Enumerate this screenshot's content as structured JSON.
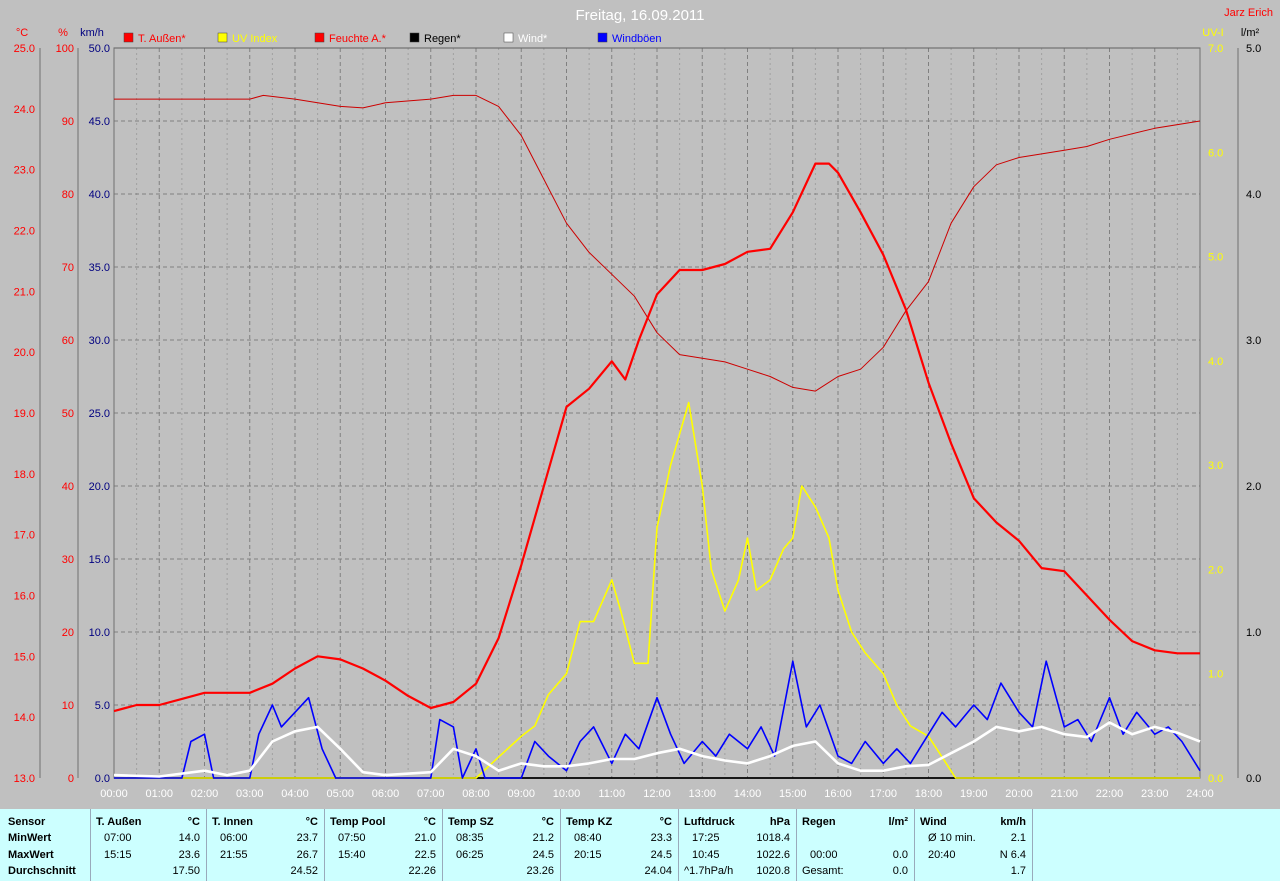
{
  "header": {
    "title": "Freitag, 16.09.2011",
    "author": "Jarz Erich"
  },
  "colors": {
    "temp": "#ff0000",
    "uv": "#ffff00",
    "humidity": "#cc0000",
    "rain": "#000000",
    "wind": "#ffffff",
    "gust": "#0000ff",
    "grid": "#808080",
    "plot_bg": "#c0c0c0",
    "stats_bg": "#ccffff"
  },
  "legend": [
    {
      "label": "T. Außen*",
      "color": "#ff0000"
    },
    {
      "label": "UV Index",
      "color": "#ffff00"
    },
    {
      "label": "Feuchte A.*",
      "color": "#ff0000"
    },
    {
      "label": "Regen*",
      "color": "#000000"
    },
    {
      "label": "Wind*",
      "color": "#ffffff"
    },
    {
      "label": "Windböen",
      "color": "#0000ff"
    }
  ],
  "chart_data": {
    "type": "line",
    "title": "Freitag, 16.09.2011",
    "x_ticks": [
      "00:00",
      "01:00",
      "02:00",
      "03:00",
      "04:00",
      "05:00",
      "06:00",
      "07:00",
      "08:00",
      "09:00",
      "10:00",
      "11:00",
      "12:00",
      "13:00",
      "14:00",
      "15:00",
      "16:00",
      "17:00",
      "18:00",
      "19:00",
      "20:00",
      "21:00",
      "22:00",
      "23:00",
      "24:00"
    ],
    "grid": true,
    "legend_position": "top",
    "axes": {
      "temp": {
        "unit": "°C",
        "range": [
          13.0,
          25.0
        ],
        "ticks": [
          "13.0",
          "14.0",
          "15.0",
          "16.0",
          "17.0",
          "18.0",
          "19.0",
          "20.0",
          "21.0",
          "22.0",
          "23.0",
          "24.0",
          "25.0"
        ]
      },
      "humidity": {
        "unit": "%",
        "range": [
          0,
          100
        ],
        "ticks": [
          "0",
          "10",
          "20",
          "30",
          "40",
          "50",
          "60",
          "70",
          "80",
          "90",
          "100"
        ]
      },
      "wind": {
        "unit": "km/h",
        "range": [
          0,
          50
        ],
        "ticks": [
          "0.0",
          "5.0",
          "10.0",
          "15.0",
          "20.0",
          "25.0",
          "30.0",
          "35.0",
          "40.0",
          "45.0",
          "50.0"
        ]
      },
      "uv": {
        "unit": "UV-I",
        "range": [
          0,
          7
        ],
        "ticks": [
          "0.0",
          "1.0",
          "2.0",
          "3.0",
          "4.0",
          "5.0",
          "6.0",
          "7.0"
        ]
      },
      "rain": {
        "unit": "l/m²",
        "range": [
          0,
          5
        ],
        "ticks": [
          "0.0",
          "1.0",
          "2.0",
          "3.0",
          "4.0",
          "5.0"
        ]
      }
    },
    "series": [
      {
        "name": "T. Außen*",
        "axis": "temp",
        "width": 2.2,
        "color": "#ff0000",
        "points": [
          [
            0,
            14.1
          ],
          [
            0.5,
            14.2
          ],
          [
            1,
            14.2
          ],
          [
            1.5,
            14.3
          ],
          [
            2,
            14.4
          ],
          [
            2.5,
            14.4
          ],
          [
            3,
            14.4
          ],
          [
            3.5,
            14.55
          ],
          [
            4,
            14.8
          ],
          [
            4.5,
            15.0
          ],
          [
            5,
            14.95
          ],
          [
            5.5,
            14.8
          ],
          [
            6,
            14.6
          ],
          [
            6.5,
            14.35
          ],
          [
            7,
            14.15
          ],
          [
            7.5,
            14.25
          ],
          [
            8,
            14.55
          ],
          [
            8.5,
            15.3
          ],
          [
            9,
            16.5
          ],
          [
            9.5,
            17.8
          ],
          [
            10,
            19.1
          ],
          [
            10.5,
            19.4
          ],
          [
            11,
            19.85
          ],
          [
            11.3,
            19.55
          ],
          [
            11.6,
            20.2
          ],
          [
            12,
            20.95
          ],
          [
            12.5,
            21.35
          ],
          [
            13,
            21.35
          ],
          [
            13.5,
            21.45
          ],
          [
            14,
            21.65
          ],
          [
            14.5,
            21.7
          ],
          [
            15,
            22.3
          ],
          [
            15.5,
            23.1
          ],
          [
            15.8,
            23.1
          ],
          [
            16,
            22.95
          ],
          [
            16.5,
            22.3
          ],
          [
            17,
            21.6
          ],
          [
            17.5,
            20.7
          ],
          [
            18,
            19.5
          ],
          [
            18.5,
            18.5
          ],
          [
            19,
            17.6
          ],
          [
            19.5,
            17.2
          ],
          [
            20,
            16.9
          ],
          [
            20.5,
            16.45
          ],
          [
            21,
            16.4
          ],
          [
            21.5,
            16.0
          ],
          [
            22,
            15.6
          ],
          [
            22.5,
            15.25
          ],
          [
            23,
            15.1
          ],
          [
            23.5,
            15.05
          ],
          [
            24,
            15.05
          ]
        ]
      },
      {
        "name": "Feuchte A.*",
        "axis": "humidity",
        "width": 1,
        "color": "#cc0000",
        "points": [
          [
            0,
            93
          ],
          [
            1,
            93
          ],
          [
            2,
            93
          ],
          [
            3,
            93
          ],
          [
            3.3,
            93.5
          ],
          [
            4,
            93
          ],
          [
            4.5,
            92.5
          ],
          [
            5,
            92
          ],
          [
            5.5,
            91.8
          ],
          [
            6,
            92.5
          ],
          [
            7,
            93
          ],
          [
            7.5,
            93.5
          ],
          [
            8,
            93.5
          ],
          [
            8.5,
            92
          ],
          [
            9,
            88
          ],
          [
            9.5,
            82
          ],
          [
            10,
            76
          ],
          [
            10.5,
            72
          ],
          [
            11,
            69
          ],
          [
            11.5,
            66
          ],
          [
            12,
            61
          ],
          [
            12.5,
            58
          ],
          [
            13,
            57.5
          ],
          [
            13.5,
            57
          ],
          [
            14,
            56
          ],
          [
            14.5,
            55
          ],
          [
            15,
            53.5
          ],
          [
            15.5,
            53
          ],
          [
            16,
            55
          ],
          [
            16.5,
            56
          ],
          [
            17,
            59
          ],
          [
            17.5,
            64
          ],
          [
            18,
            68
          ],
          [
            18.5,
            76
          ],
          [
            19,
            81
          ],
          [
            19.5,
            84
          ],
          [
            20,
            85
          ],
          [
            21,
            86
          ],
          [
            21.5,
            86.5
          ],
          [
            22,
            87.5
          ],
          [
            23,
            89
          ],
          [
            24,
            90
          ]
        ]
      },
      {
        "name": "UV Index",
        "axis": "uv",
        "width": 1.6,
        "color": "#ffff00",
        "points": [
          [
            0,
            0
          ],
          [
            8,
            0
          ],
          [
            8.5,
            0.2
          ],
          [
            9,
            0.4
          ],
          [
            9.3,
            0.5
          ],
          [
            9.6,
            0.8
          ],
          [
            10,
            1.0
          ],
          [
            10.3,
            1.5
          ],
          [
            10.6,
            1.5
          ],
          [
            11,
            1.9
          ],
          [
            11.2,
            1.6
          ],
          [
            11.5,
            1.1
          ],
          [
            11.8,
            1.1
          ],
          [
            12,
            2.4
          ],
          [
            12.3,
            3.0
          ],
          [
            12.7,
            3.6
          ],
          [
            13,
            2.8
          ],
          [
            13.2,
            2.0
          ],
          [
            13.5,
            1.6
          ],
          [
            13.8,
            1.9
          ],
          [
            14,
            2.3
          ],
          [
            14.2,
            1.8
          ],
          [
            14.5,
            1.9
          ],
          [
            14.8,
            2.2
          ],
          [
            15,
            2.3
          ],
          [
            15.2,
            2.8
          ],
          [
            15.5,
            2.6
          ],
          [
            15.8,
            2.3
          ],
          [
            16,
            1.8
          ],
          [
            16.3,
            1.4
          ],
          [
            16.6,
            1.2
          ],
          [
            17,
            1.0
          ],
          [
            17.3,
            0.7
          ],
          [
            17.6,
            0.5
          ],
          [
            18,
            0.4
          ],
          [
            18.3,
            0.2
          ],
          [
            18.6,
            0.0
          ],
          [
            24,
            0
          ]
        ]
      },
      {
        "name": "Wind*",
        "axis": "wind",
        "width": 2.6,
        "color": "#ffffff",
        "points": [
          [
            0,
            0.2
          ],
          [
            1,
            0.1
          ],
          [
            2,
            0.5
          ],
          [
            2.5,
            0.2
          ],
          [
            3,
            0.5
          ],
          [
            3.5,
            2.5
          ],
          [
            4,
            3.2
          ],
          [
            4.5,
            3.5
          ],
          [
            5,
            2.0
          ],
          [
            5.5,
            0.4
          ],
          [
            6,
            0.2
          ],
          [
            7,
            0.4
          ],
          [
            7.5,
            2.0
          ],
          [
            8,
            1.5
          ],
          [
            8.5,
            0.5
          ],
          [
            9,
            1.0
          ],
          [
            9.5,
            0.8
          ],
          [
            10,
            0.8
          ],
          [
            10.5,
            1.0
          ],
          [
            11,
            1.3
          ],
          [
            11.5,
            1.3
          ],
          [
            12,
            1.7
          ],
          [
            12.5,
            2.0
          ],
          [
            13,
            1.5
          ],
          [
            13.5,
            1.2
          ],
          [
            14,
            1.0
          ],
          [
            14.5,
            1.5
          ],
          [
            15,
            2.2
          ],
          [
            15.5,
            2.5
          ],
          [
            16,
            1.0
          ],
          [
            16.5,
            0.5
          ],
          [
            17,
            0.5
          ],
          [
            17.5,
            0.8
          ],
          [
            18,
            0.9
          ],
          [
            18.5,
            1.7
          ],
          [
            19,
            2.5
          ],
          [
            19.5,
            3.5
          ],
          [
            20,
            3.2
          ],
          [
            20.5,
            3.5
          ],
          [
            21,
            3.0
          ],
          [
            21.5,
            2.8
          ],
          [
            22,
            3.8
          ],
          [
            22.5,
            3.0
          ],
          [
            23,
            3.5
          ],
          [
            23.5,
            3.1
          ],
          [
            24,
            2.5
          ]
        ]
      },
      {
        "name": "Windböen",
        "axis": "wind",
        "width": 1.6,
        "color": "#0000ff",
        "points": [
          [
            0,
            0
          ],
          [
            1.5,
            0
          ],
          [
            1.7,
            2.5
          ],
          [
            2,
            3.0
          ],
          [
            2.2,
            0
          ],
          [
            3,
            0
          ],
          [
            3.2,
            3.0
          ],
          [
            3.5,
            5.0
          ],
          [
            3.7,
            3.5
          ],
          [
            4,
            4.5
          ],
          [
            4.3,
            5.5
          ],
          [
            4.6,
            2.0
          ],
          [
            4.9,
            0
          ],
          [
            7,
            0
          ],
          [
            7.2,
            4.0
          ],
          [
            7.5,
            3.5
          ],
          [
            7.7,
            0
          ],
          [
            8,
            2.0
          ],
          [
            8.2,
            0
          ],
          [
            9,
            0
          ],
          [
            9.3,
            2.5
          ],
          [
            9.6,
            1.5
          ],
          [
            10,
            0.5
          ],
          [
            10.3,
            2.5
          ],
          [
            10.6,
            3.5
          ],
          [
            11,
            1.0
          ],
          [
            11.3,
            3.0
          ],
          [
            11.6,
            2.0
          ],
          [
            12,
            5.5
          ],
          [
            12.3,
            3.0
          ],
          [
            12.6,
            1.0
          ],
          [
            13,
            2.5
          ],
          [
            13.3,
            1.5
          ],
          [
            13.6,
            3.0
          ],
          [
            14,
            2.0
          ],
          [
            14.3,
            3.5
          ],
          [
            14.6,
            1.5
          ],
          [
            15,
            8.0
          ],
          [
            15.3,
            3.5
          ],
          [
            15.6,
            5.0
          ],
          [
            16,
            1.5
          ],
          [
            16.3,
            1.0
          ],
          [
            16.6,
            2.5
          ],
          [
            17,
            1.0
          ],
          [
            17.3,
            2.0
          ],
          [
            17.6,
            1.0
          ],
          [
            18,
            3.0
          ],
          [
            18.3,
            4.5
          ],
          [
            18.6,
            3.5
          ],
          [
            19,
            5.0
          ],
          [
            19.3,
            4.0
          ],
          [
            19.6,
            6.5
          ],
          [
            20,
            4.5
          ],
          [
            20.3,
            3.5
          ],
          [
            20.6,
            8.0
          ],
          [
            21,
            3.5
          ],
          [
            21.3,
            4.0
          ],
          [
            21.6,
            2.5
          ],
          [
            22,
            5.5
          ],
          [
            22.3,
            3.0
          ],
          [
            22.6,
            4.5
          ],
          [
            23,
            3.0
          ],
          [
            23.3,
            3.5
          ],
          [
            23.6,
            2.5
          ],
          [
            24,
            0.5
          ]
        ]
      },
      {
        "name": "Regen*",
        "axis": "rain",
        "width": 1.5,
        "color": "#000000",
        "points": [
          [
            0,
            0
          ],
          [
            24,
            0
          ]
        ]
      }
    ]
  },
  "stats": {
    "labels": {
      "sensor": "Sensor",
      "min": "MinWert",
      "max": "MaxWert",
      "avg": "Durchschnitt"
    },
    "columns": [
      {
        "title": "T. Außen",
        "unit": "°C",
        "min_time": "07:00",
        "min_val": "14.0",
        "max_time": "15:15",
        "max_val": "23.6",
        "avg_label": "",
        "avg": "17.50"
      },
      {
        "title": "T. Innen",
        "unit": "°C",
        "min_time": "06:00",
        "min_val": "23.7",
        "max_time": "21:55",
        "max_val": "26.7",
        "avg_label": "",
        "avg": "24.52"
      },
      {
        "title": "Temp Pool",
        "unit": "°C",
        "min_time": "07:50",
        "min_val": "21.0",
        "max_time": "15:40",
        "max_val": "22.5",
        "avg_label": "",
        "avg": "22.26"
      },
      {
        "title": "Temp SZ",
        "unit": "°C",
        "min_time": "08:35",
        "min_val": "21.2",
        "max_time": "06:25",
        "max_val": "24.5",
        "avg_label": "",
        "avg": "23.26"
      },
      {
        "title": "Temp KZ",
        "unit": "°C",
        "min_time": "08:40",
        "min_val": "23.3",
        "max_time": "20:15",
        "max_val": "24.5",
        "avg_label": "",
        "avg": "24.04"
      },
      {
        "title": "Luftdruck",
        "unit": "hPa",
        "min_time": "17:25",
        "min_val": "1018.4",
        "max_time": "10:45",
        "max_val": "1022.6",
        "avg_label": "^1.7hPa/h",
        "avg": "1020.8"
      },
      {
        "title": "Regen",
        "unit": "l/m²",
        "min_time": "",
        "min_val": "",
        "max_time": "00:00",
        "max_val": "0.0",
        "avg_label": "Gesamt:",
        "avg": "0.0"
      },
      {
        "title": "Wind",
        "unit": "km/h",
        "min_time": "Ø 10 min.",
        "min_val": "2.1",
        "max_time": "20:40",
        "max_val": "N 6.4",
        "avg_label": "",
        "avg": "1.7"
      }
    ]
  }
}
